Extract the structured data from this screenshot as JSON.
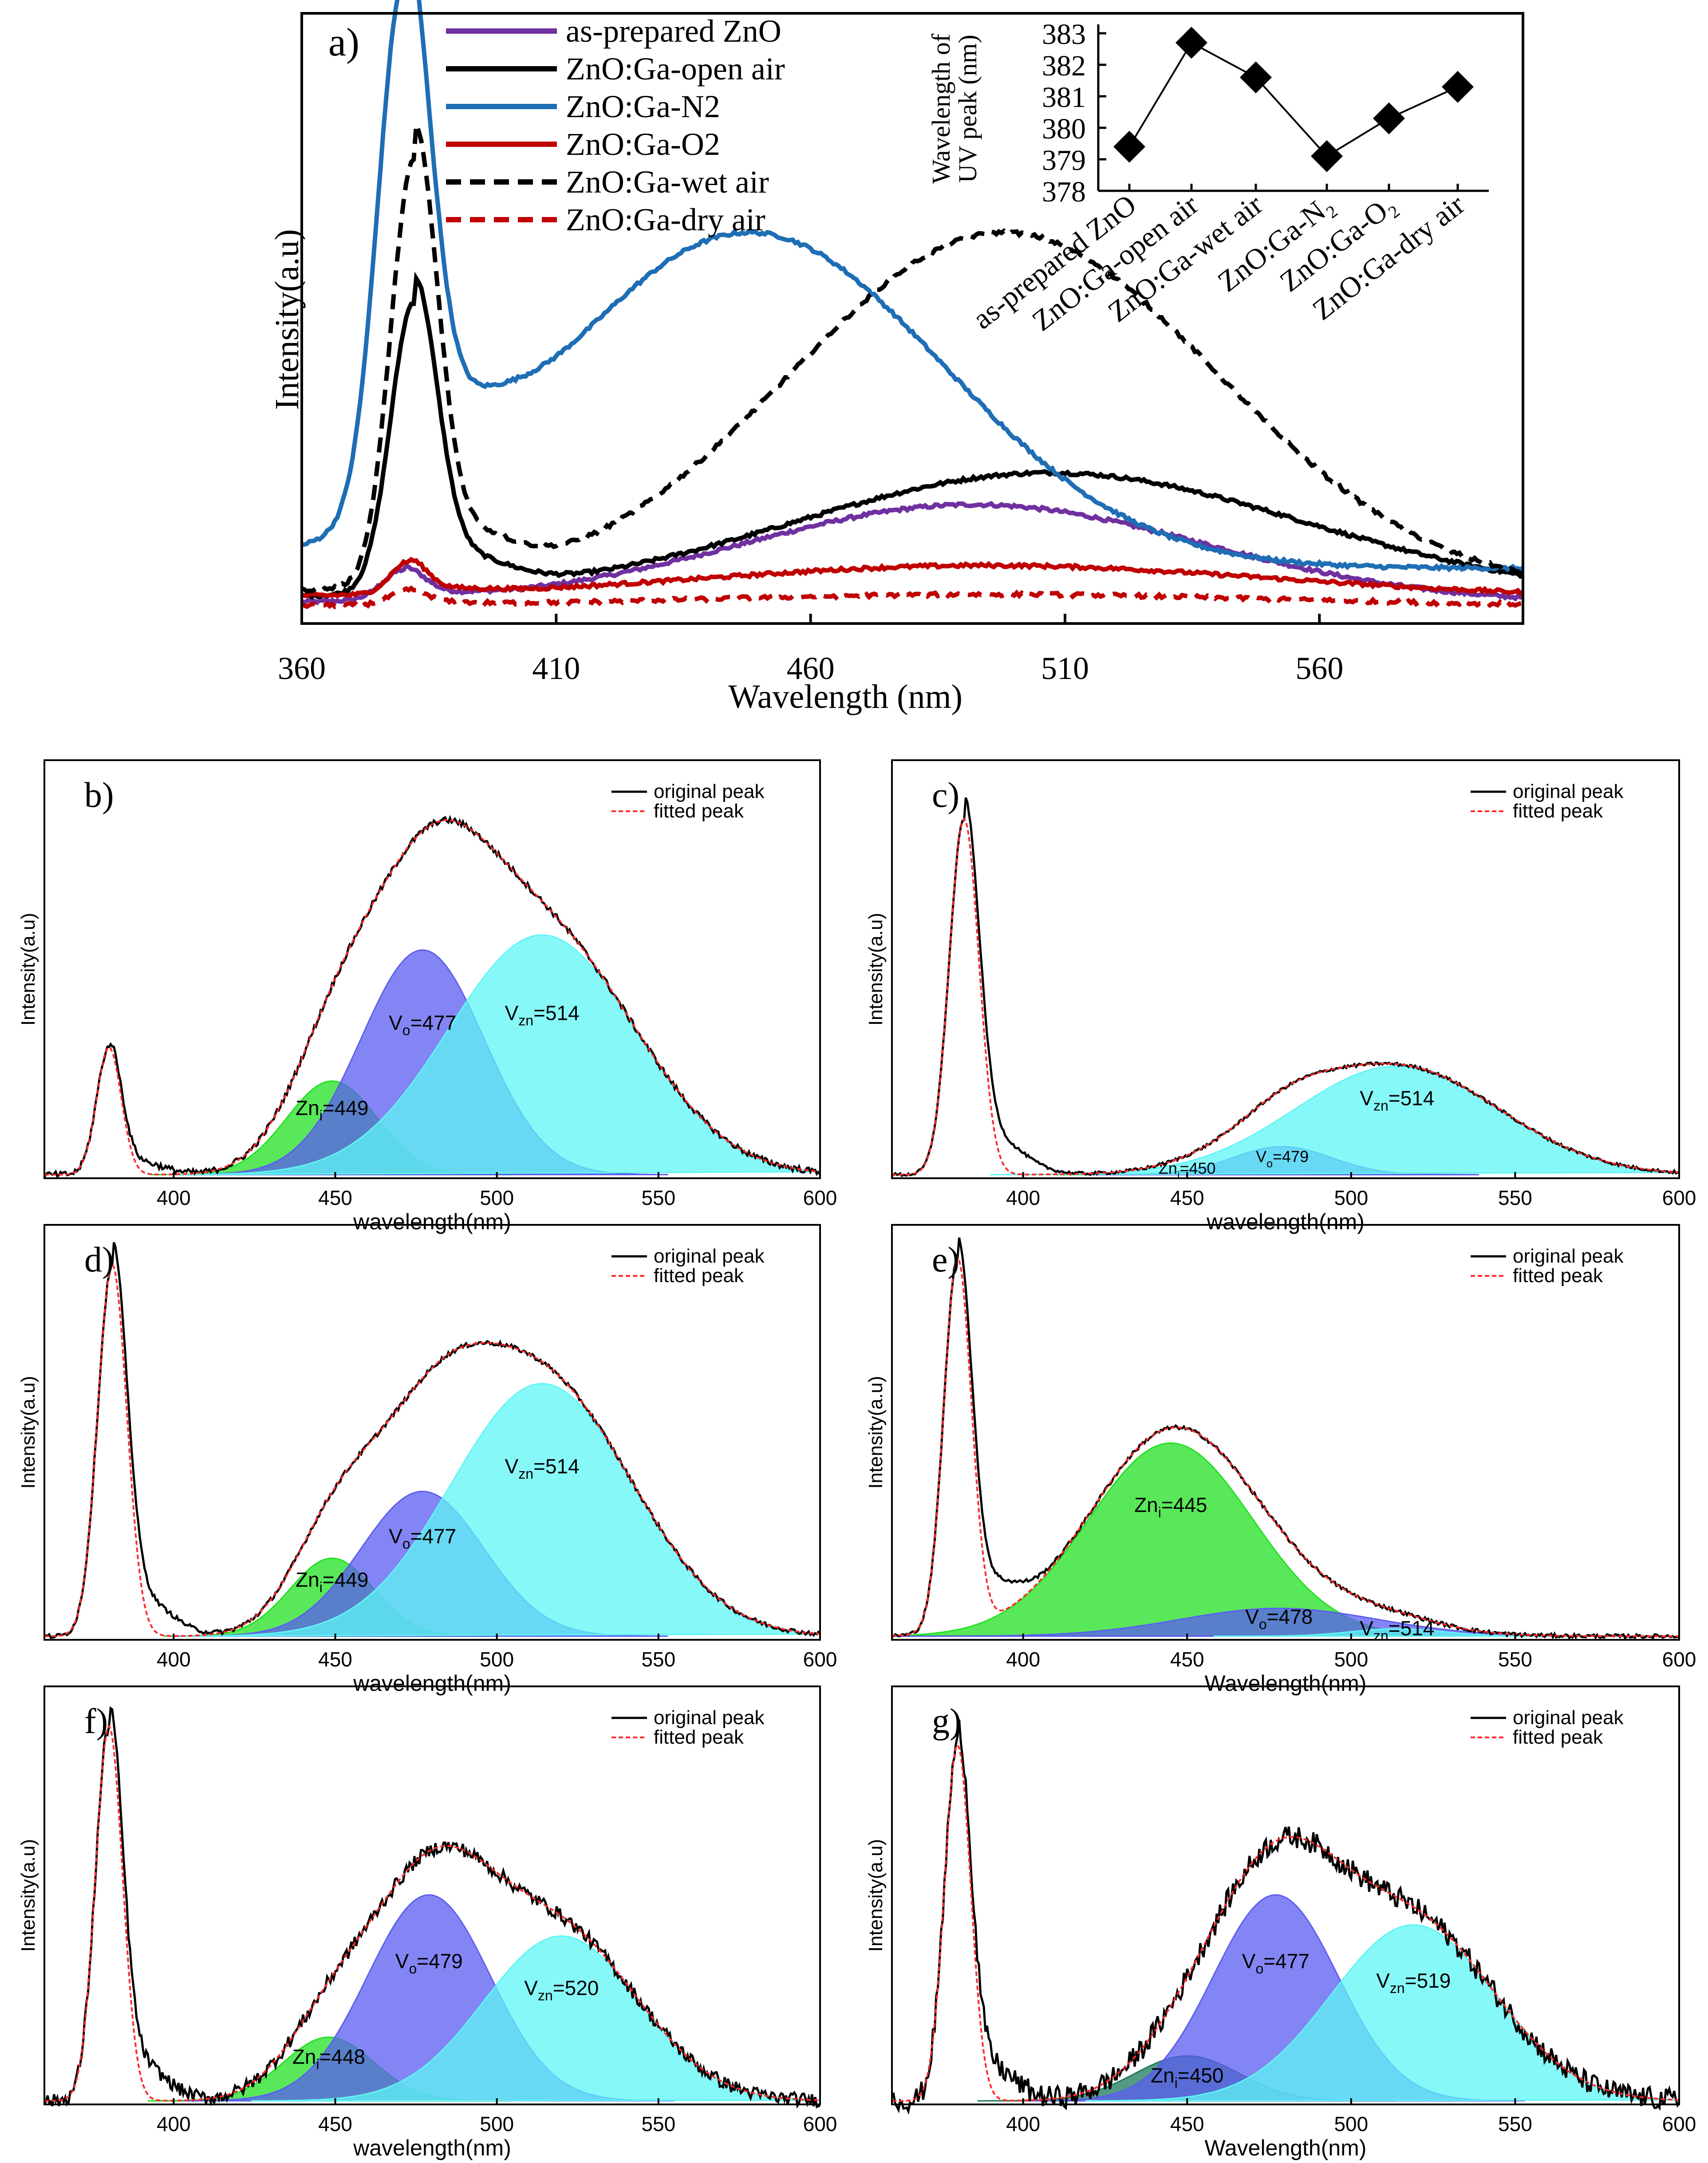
{
  "figure": {
    "colors": {
      "purple": "#7030a0",
      "black": "#000000",
      "blue": "#1f6eb5",
      "red": "#c00000",
      "green": "#22e022",
      "indigo": "#5b5cf0",
      "cyan": "#5ff5f5",
      "fitred": "#ff2a2a"
    }
  },
  "chart_data": [
    {
      "id": "a",
      "type": "line",
      "panel_label": "a)",
      "xlabel": "Wavelength (nm)",
      "ylabel": "Intensity(a.u)",
      "xlim": [
        360,
        600
      ],
      "ylim": [
        0,
        1
      ],
      "xticks": [
        "360",
        "410",
        "460",
        "510",
        "560"
      ],
      "series": [
        {
          "name": "as-prepared ZnO",
          "color": "#7030a0",
          "dash": false,
          "baseline": 0.02,
          "peaks": [
            {
              "c": 380,
              "w": 4,
              "a": 0.05
            },
            {
              "c": 492,
              "w": 45,
              "a": 0.17
            }
          ]
        },
        {
          "name": "ZnO:Ga-open air",
          "color": "#000000",
          "dash": false,
          "baseline": 0.03,
          "peaks": [
            {
              "c": 382,
              "w": 4.5,
              "a": 0.5
            },
            {
              "c": 507,
              "w": 50,
              "a": 0.215
            }
          ]
        },
        {
          "name": "ZnO:Ga-N2",
          "color": "#1f6eb5",
          "dash": false,
          "baseline": 0.08,
          "peaks": [
            {
              "c": 380,
              "w": 5,
              "a": 0.9
            },
            {
              "c": 448,
              "w": 38,
              "a": 0.58
            }
          ]
        },
        {
          "name": "ZnO:Ga-O2",
          "color": "#c00000",
          "dash": false,
          "baseline": 0.03,
          "peaks": [
            {
              "c": 381,
              "w": 3.5,
              "a": 0.055
            },
            {
              "c": 495,
              "w": 55,
              "a": 0.055
            }
          ]
        },
        {
          "name": "ZnO:Ga-wet air",
          "color": "#000000",
          "dash": true,
          "baseline": 0.04,
          "peaks": [
            {
              "c": 382,
              "w": 4.5,
              "a": 0.73
            },
            {
              "c": 498,
              "w": 42,
              "a": 0.62
            }
          ]
        },
        {
          "name": "ZnO:Ga-dry air",
          "color": "#c00000",
          "dash": true,
          "baseline": 0.015,
          "peaks": [
            {
              "c": 381,
              "w": 3.5,
              "a": 0.025
            },
            {
              "c": 495,
              "w": 55,
              "a": 0.02
            }
          ]
        }
      ],
      "inset": {
        "type": "line",
        "ylabel": "Wavelength of UV peak (nm)",
        "ylim": [
          378,
          383
        ],
        "yticks": [
          "378",
          "379",
          "380",
          "381",
          "382",
          "383"
        ],
        "categories": [
          "as-prepared ZnO",
          "ZnO:Ga-open air",
          "ZnO:Ga-wet air",
          "ZnO:Ga-N₂",
          "ZnO:Ga-O₂",
          "ZnO:Ga-dry air"
        ],
        "values": [
          379.4,
          382.7,
          381.6,
          379.1,
          380.3,
          381.3
        ]
      }
    },
    {
      "id": "b",
      "type": "line",
      "panel_label": "b)",
      "xlabel": "wavelength(nm)",
      "ylabel": "Intensity(a.u)",
      "xlim": [
        360,
        600
      ],
      "ylim": [
        0,
        1
      ],
      "xticks": [
        "400",
        "450",
        "500",
        "550",
        "600"
      ],
      "legend": [
        "original peak",
        "fitted peak"
      ],
      "uv": {
        "c": 380,
        "w": 3.8,
        "a": 0.34
      },
      "components": [
        {
          "center": 449,
          "width": 14,
          "height": 0.25,
          "color": "#22e022",
          "label_pre": "Zn",
          "label_sub": "i",
          "label_post": "=449"
        },
        {
          "center": 477,
          "width": 19,
          "height": 0.6,
          "color": "#5b5cf0",
          "label_pre": "V",
          "label_sub": "o",
          "label_post": "=477"
        },
        {
          "center": 514,
          "width": 29,
          "height": 0.64,
          "color": "#5ff5f5",
          "label_pre": "V",
          "label_sub": "zn",
          "label_post": "=514"
        }
      ],
      "peak_total": 1.0,
      "noise": 0.008
    },
    {
      "id": "c",
      "type": "line",
      "panel_label": "c)",
      "xlabel": "wavelength(nm)",
      "ylabel": "Intensity(a.u)",
      "xlim": [
        360,
        600
      ],
      "ylim": [
        0,
        1
      ],
      "xticks": [
        "400",
        "450",
        "500",
        "550",
        "600"
      ],
      "legend": [
        "original peak",
        "fitted peak"
      ],
      "uv": {
        "c": 382,
        "w": 4.5,
        "a": 0.95
      },
      "components": [
        {
          "center": 450,
          "width": 10,
          "height": 0.006,
          "color": "#22e022",
          "label_pre": "Zn",
          "label_sub": "i",
          "label_post": "=450"
        },
        {
          "center": 479,
          "width": 15,
          "height": 0.075,
          "color": "#5b5cf0",
          "label_pre": "V",
          "label_sub": "o",
          "label_post": "=479"
        },
        {
          "center": 514,
          "width": 31,
          "height": 0.29,
          "color": "#5ff5f5",
          "label_pre": "V",
          "label_sub": "zn",
          "label_post": "=514"
        }
      ],
      "peak_total": 0.32,
      "noise": 0.004
    },
    {
      "id": "d",
      "type": "line",
      "panel_label": "d)",
      "xlabel": "wavelength(nm)",
      "ylabel": "Intensity(a.u)",
      "xlim": [
        360,
        600
      ],
      "ylim": [
        0,
        1
      ],
      "xticks": [
        "400",
        "450",
        "500",
        "550",
        "600"
      ],
      "legend": [
        "original peak",
        "fitted peak"
      ],
      "uv": {
        "c": 381,
        "w": 4.5,
        "a": 1.0
      },
      "components": [
        {
          "center": 449,
          "width": 13,
          "height": 0.21,
          "color": "#22e022",
          "label_pre": "Zn",
          "label_sub": "i",
          "label_post": "=449"
        },
        {
          "center": 477,
          "width": 19,
          "height": 0.39,
          "color": "#5b5cf0",
          "label_pre": "V",
          "label_sub": "o",
          "label_post": "=477"
        },
        {
          "center": 514,
          "width": 28,
          "height": 0.68,
          "color": "#5ff5f5",
          "label_pre": "V",
          "label_sub": "zn",
          "label_post": "=514"
        }
      ],
      "peak_total": 0.9,
      "noise": 0.006
    },
    {
      "id": "e",
      "type": "line",
      "panel_label": "e)",
      "xlabel": "Wavelength(nm)",
      "ylabel": "Intensity(a.u)",
      "xlim": [
        360,
        600
      ],
      "ylim": [
        0,
        1
      ],
      "xticks": [
        "400",
        "450",
        "500",
        "550",
        "600"
      ],
      "legend": [
        "original peak",
        "fitted peak"
      ],
      "uv": {
        "c": 380,
        "w": 4.2,
        "a": 1.0
      },
      "components": [
        {
          "center": 445,
          "width": 25,
          "height": 0.52,
          "color": "#22e022",
          "label_pre": "Zn",
          "label_sub": "i",
          "label_post": "=445"
        },
        {
          "center": 478,
          "width": 30,
          "height": 0.075,
          "color": "#5b5cf0",
          "label_pre": "V",
          "label_sub": "o",
          "label_post": "=478"
        },
        {
          "center": 514,
          "width": 14,
          "height": 0.02,
          "color": "#5ff5f5",
          "label_pre": "V",
          "label_sub": "zn",
          "label_post": "=514"
        }
      ],
      "peak_total": 0.57,
      "noise": 0.005
    },
    {
      "id": "f",
      "type": "line",
      "panel_label": "f)",
      "xlabel": "wavelength(nm)",
      "ylabel": "Intensity(a.u)",
      "xlim": [
        360,
        600
      ],
      "ylim": [
        0,
        1
      ],
      "xticks": [
        "400",
        "450",
        "500",
        "550",
        "600"
      ],
      "legend": [
        "original peak",
        "fitted peak"
      ],
      "uv": {
        "c": 380,
        "w": 4.2,
        "a": 1.0
      },
      "components": [
        {
          "center": 448,
          "width": 14,
          "height": 0.17,
          "color": "#22e022",
          "label_pre": "Zn",
          "label_sub": "i",
          "label_post": "=448"
        },
        {
          "center": 479,
          "width": 19,
          "height": 0.55,
          "color": "#5b5cf0",
          "label_pre": "V",
          "label_sub": "o",
          "label_post": "=479"
        },
        {
          "center": 520,
          "width": 24,
          "height": 0.44,
          "color": "#5ff5f5",
          "label_pre": "V",
          "label_sub": "zn",
          "label_post": "=520"
        }
      ],
      "peak_total": 0.78,
      "noise": 0.018
    },
    {
      "id": "g",
      "type": "line",
      "panel_label": "g)",
      "xlabel": "Wavelength(nm)",
      "ylabel": "Intensity(a.u)",
      "xlim": [
        360,
        600
      ],
      "ylim": [
        0,
        1
      ],
      "xticks": [
        "400",
        "450",
        "500",
        "550",
        "600"
      ],
      "legend": [
        "original peak",
        "fitted peak"
      ],
      "uv": {
        "c": 380,
        "w": 4.0,
        "a": 0.95
      },
      "components": [
        {
          "center": 450,
          "width": 16,
          "height": 0.12,
          "color": "#1a7a5a",
          "label_pre": "Zn",
          "label_sub": "i",
          "label_post": "=450"
        },
        {
          "center": 477,
          "width": 19,
          "height": 0.55,
          "color": "#5b5cf0",
          "label_pre": "V",
          "label_sub": "o",
          "label_post": "=477"
        },
        {
          "center": 519,
          "width": 25,
          "height": 0.47,
          "color": "#5ff5f5",
          "label_pre": "V",
          "label_sub": "zn",
          "label_post": "=519"
        }
      ],
      "peak_total": 0.7,
      "noise": 0.03
    }
  ]
}
